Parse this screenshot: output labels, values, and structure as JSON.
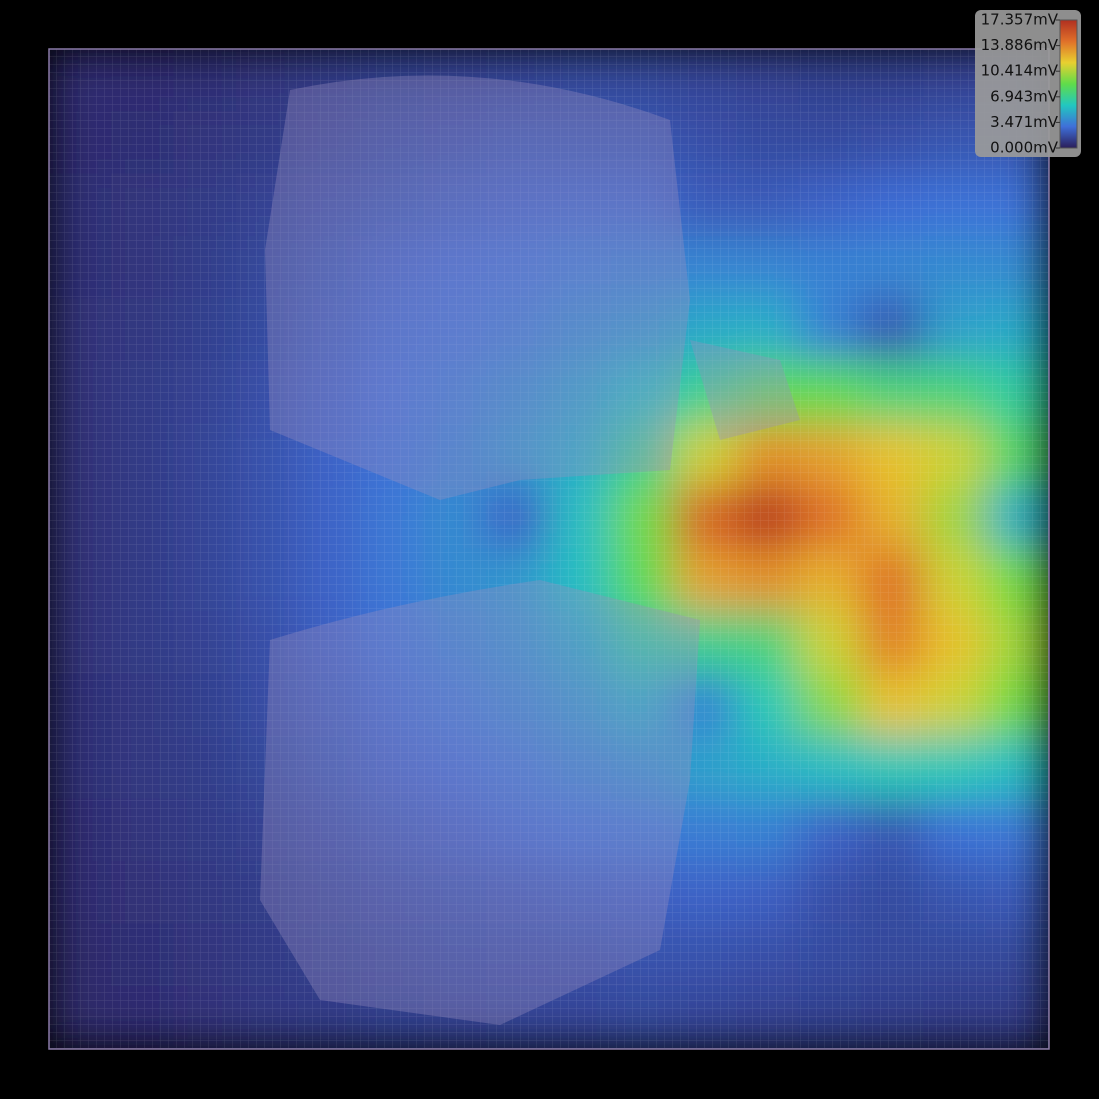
{
  "chart_data": {
    "type": "heatmap",
    "colorscale": [
      "#2b1e5a",
      "#3f6fd8",
      "#22c7c0",
      "#5fdc4a",
      "#e8d030",
      "#e0702a",
      "#b03020"
    ],
    "zlim": [
      0,
      17.357
    ],
    "zticks": [
      {
        "value": 17.357,
        "label": "17.357mV"
      },
      {
        "value": 13.886,
        "label": "13.886mV"
      },
      {
        "value": 10.414,
        "label": "10.414mV"
      },
      {
        "value": 6.943,
        "label": "6.943mV"
      },
      {
        "value": 3.471,
        "label": "3.471mV"
      },
      {
        "value": 0,
        "label": "0.000mV"
      }
    ],
    "values": [
      [
        0.5,
        0.5,
        0.6,
        0.8,
        1,
        1.2,
        1.3,
        1.4,
        1.5,
        1.5,
        1.4,
        1.3,
        1.2,
        1.2,
        1.3,
        1.4
      ],
      [
        0.5,
        0.6,
        0.8,
        1,
        1.3,
        1.6,
        1.8,
        2,
        2,
        2,
        1.8,
        1.6,
        1.6,
        1.8,
        2,
        2
      ],
      [
        0.6,
        0.8,
        1,
        1.3,
        1.7,
        2,
        2.3,
        2.5,
        2.6,
        2.6,
        2.2,
        2.2,
        2.5,
        2.8,
        3,
        3
      ],
      [
        0.6,
        0.8,
        1.1,
        1.5,
        2,
        2.5,
        2.8,
        3,
        3.3,
        3.5,
        3.6,
        3.6,
        3.5,
        3.6,
        3.8,
        3.8
      ],
      [
        0.7,
        0.9,
        1.2,
        1.6,
        2.2,
        2.7,
        3,
        3.3,
        3.8,
        4.2,
        4.8,
        5,
        3.5,
        2,
        4.5,
        4.8
      ],
      [
        0.7,
        1,
        1.3,
        1.8,
        2.4,
        2.9,
        3.3,
        3.8,
        4.5,
        5.5,
        7,
        8.5,
        8.5,
        7.5,
        7.5,
        6.5
      ],
      [
        0.7,
        1,
        1.4,
        1.9,
        2.5,
        3,
        3.5,
        4.2,
        5,
        7,
        11,
        13.5,
        13,
        12,
        11,
        8
      ],
      [
        0.7,
        1,
        1.4,
        1.9,
        2.5,
        3.2,
        3.8,
        2.5,
        5.5,
        9,
        15,
        17,
        14.5,
        12.5,
        10,
        5
      ],
      [
        0.7,
        1,
        1.4,
        1.9,
        2.5,
        3.2,
        3.8,
        4.2,
        5.5,
        8.5,
        13,
        13.5,
        12.5,
        14.5,
        11,
        9
      ],
      [
        0.7,
        1,
        1.3,
        1.8,
        2.4,
        3,
        3.5,
        4,
        4.8,
        6.5,
        7,
        7.5,
        11,
        14,
        12,
        10
      ],
      [
        0.6,
        0.9,
        1.2,
        1.7,
        2.2,
        2.7,
        3.2,
        3.6,
        4.2,
        5,
        3.5,
        6,
        9.5,
        12,
        11,
        9
      ],
      [
        0.6,
        0.9,
        1.1,
        1.5,
        2,
        2.5,
        2.8,
        3.2,
        3.6,
        4,
        4.5,
        5,
        5.5,
        6,
        6,
        5.5
      ],
      [
        0.5,
        0.8,
        1,
        1.3,
        1.7,
        2.1,
        2.4,
        2.7,
        3,
        3.2,
        3.4,
        3.5,
        2.5,
        2,
        3,
        3.2
      ],
      [
        0.5,
        0.7,
        0.9,
        1.1,
        1.4,
        1.7,
        1.9,
        2.1,
        2.3,
        2.4,
        2.5,
        2.4,
        1.8,
        1.6,
        2,
        2.2
      ],
      [
        0.4,
        0.6,
        0.8,
        1,
        1.2,
        1.4,
        1.6,
        1.7,
        1.8,
        1.9,
        1.9,
        1.8,
        1.6,
        1.5,
        1.5,
        1.5
      ],
      [
        0.4,
        0.5,
        0.7,
        0.9,
        1,
        1.2,
        1.3,
        1.4,
        1.4,
        1.5,
        1.4,
        1.3,
        1.2,
        1.1,
        1,
        1
      ]
    ]
  }
}
